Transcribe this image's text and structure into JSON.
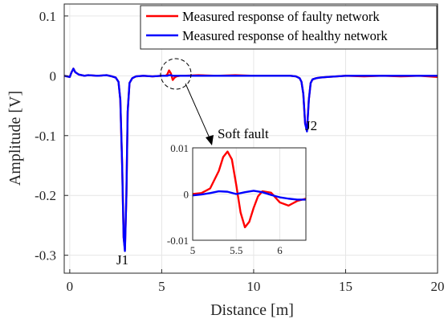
{
  "chart_data": {
    "type": "line",
    "xlabel": "Distance [m]",
    "ylabel": "Amplitude [V]",
    "xlim": [
      -0.3,
      20
    ],
    "ylim": [
      -0.33,
      0.12
    ],
    "xticks": [
      0,
      5,
      10,
      15,
      20
    ],
    "yticks": [
      0.1,
      0,
      -0.1,
      -0.2,
      -0.3
    ],
    "ytick_labels": [
      "0.1",
      "0",
      "-0.1",
      "-0.2",
      "-0.3"
    ],
    "grid": true,
    "legend_position": "top-right",
    "series": [
      {
        "name": "Measured response of faulty network",
        "color": "#ff0000",
        "x": [
          -0.3,
          0,
          0.1,
          0.2,
          0.3,
          0.5,
          0.8,
          1,
          1.5,
          2,
          2.3,
          2.5,
          2.65,
          2.75,
          2.85,
          2.93,
          3.0,
          3.08,
          3.15,
          3.25,
          3.4,
          3.6,
          4,
          4.5,
          5,
          5.2,
          5.3,
          5.4,
          5.5,
          5.6,
          5.7,
          5.8,
          6.0,
          6.2,
          7,
          8,
          9,
          10,
          11,
          12,
          12.3,
          12.5,
          12.6,
          12.7,
          12.8,
          12.9,
          13.0,
          13.1,
          13.2,
          13.4,
          13.6,
          14,
          14.5,
          15,
          16,
          17,
          18,
          19,
          20
        ],
        "y": [
          0,
          -0.002,
          0.006,
          0.012,
          0.006,
          0.002,
          0,
          0.001,
          0,
          0.001,
          -0.001,
          -0.003,
          -0.01,
          -0.04,
          -0.15,
          -0.27,
          -0.29,
          -0.2,
          -0.06,
          -0.012,
          -0.004,
          -0.001,
          0,
          -0.001,
          0,
          0,
          0.002,
          0.009,
          0.004,
          -0.007,
          -0.003,
          -0.001,
          0,
          0,
          0.001,
          0,
          0.001,
          0,
          0,
          0,
          -0.001,
          -0.004,
          -0.01,
          -0.03,
          -0.08,
          -0.09,
          -0.04,
          -0.012,
          -0.006,
          -0.004,
          -0.003,
          -0.002,
          -0.001,
          0,
          -0.001,
          0,
          -0.001,
          0,
          -0.002
        ]
      },
      {
        "name": "Measured response of healthy network",
        "color": "#0000ff",
        "x": [
          -0.3,
          0,
          0.1,
          0.2,
          0.3,
          0.5,
          0.8,
          1,
          1.5,
          2,
          2.3,
          2.5,
          2.65,
          2.75,
          2.85,
          2.93,
          3.0,
          3.08,
          3.15,
          3.25,
          3.4,
          3.6,
          4,
          4.5,
          5,
          5.2,
          5.3,
          5.4,
          5.5,
          5.6,
          5.7,
          5.8,
          6.0,
          6.2,
          7,
          8,
          9,
          10,
          11,
          12,
          12.3,
          12.5,
          12.6,
          12.7,
          12.8,
          12.9,
          13.0,
          13.1,
          13.2,
          13.4,
          13.6,
          14,
          14.5,
          15,
          16,
          17,
          18,
          19,
          20
        ],
        "y": [
          0,
          -0.002,
          0.006,
          0.012,
          0.006,
          0.002,
          0,
          0.001,
          0,
          0.001,
          -0.001,
          -0.003,
          -0.01,
          -0.04,
          -0.15,
          -0.27,
          -0.293,
          -0.2,
          -0.06,
          -0.012,
          -0.004,
          -0.001,
          0,
          -0.001,
          0,
          0,
          0,
          0.001,
          0.001,
          0,
          0,
          0,
          0,
          0,
          0,
          0,
          0,
          0,
          0,
          0,
          -0.001,
          -0.004,
          -0.01,
          -0.03,
          -0.08,
          -0.093,
          -0.04,
          -0.012,
          -0.006,
          -0.004,
          -0.003,
          -0.002,
          -0.001,
          0,
          0,
          0,
          0,
          0,
          0
        ]
      }
    ],
    "annotations": [
      "J1",
      "J2",
      "Soft fault"
    ],
    "inset": {
      "xlim": [
        5,
        6.3
      ],
      "ylim": [
        -0.01,
        0.01
      ],
      "xticks": [
        5,
        5.5,
        6
      ],
      "yticks": [
        0.01,
        0,
        -0.01
      ],
      "ytick_labels": [
        "0.01",
        "0",
        "-0.01"
      ],
      "series": [
        {
          "name": "Measured response of faulty network",
          "color": "#ff0000",
          "x": [
            5.0,
            5.1,
            5.2,
            5.3,
            5.35,
            5.4,
            5.45,
            5.5,
            5.55,
            5.6,
            5.65,
            5.7,
            5.75,
            5.8,
            5.9,
            6.0,
            6.1,
            6.2,
            6.3
          ],
          "y": [
            0.0,
            0.0002,
            0.0012,
            0.005,
            0.008,
            0.0092,
            0.0075,
            0.002,
            -0.004,
            -0.0072,
            -0.006,
            -0.003,
            -0.0005,
            0.0006,
            0.0003,
            -0.0018,
            -0.0025,
            -0.0015,
            -0.001
          ]
        },
        {
          "name": "Measured response of healthy network",
          "color": "#0000ff",
          "x": [
            5.0,
            5.1,
            5.2,
            5.3,
            5.4,
            5.5,
            5.6,
            5.7,
            5.8,
            5.9,
            6.0,
            6.1,
            6.2,
            6.3
          ],
          "y": [
            -0.0003,
            -0.0001,
            0.0002,
            0.0006,
            0.0005,
            0.0,
            0.0004,
            0.0007,
            0.0004,
            -0.0002,
            -0.0007,
            -0.001,
            -0.0012,
            -0.0012
          ]
        }
      ]
    }
  }
}
